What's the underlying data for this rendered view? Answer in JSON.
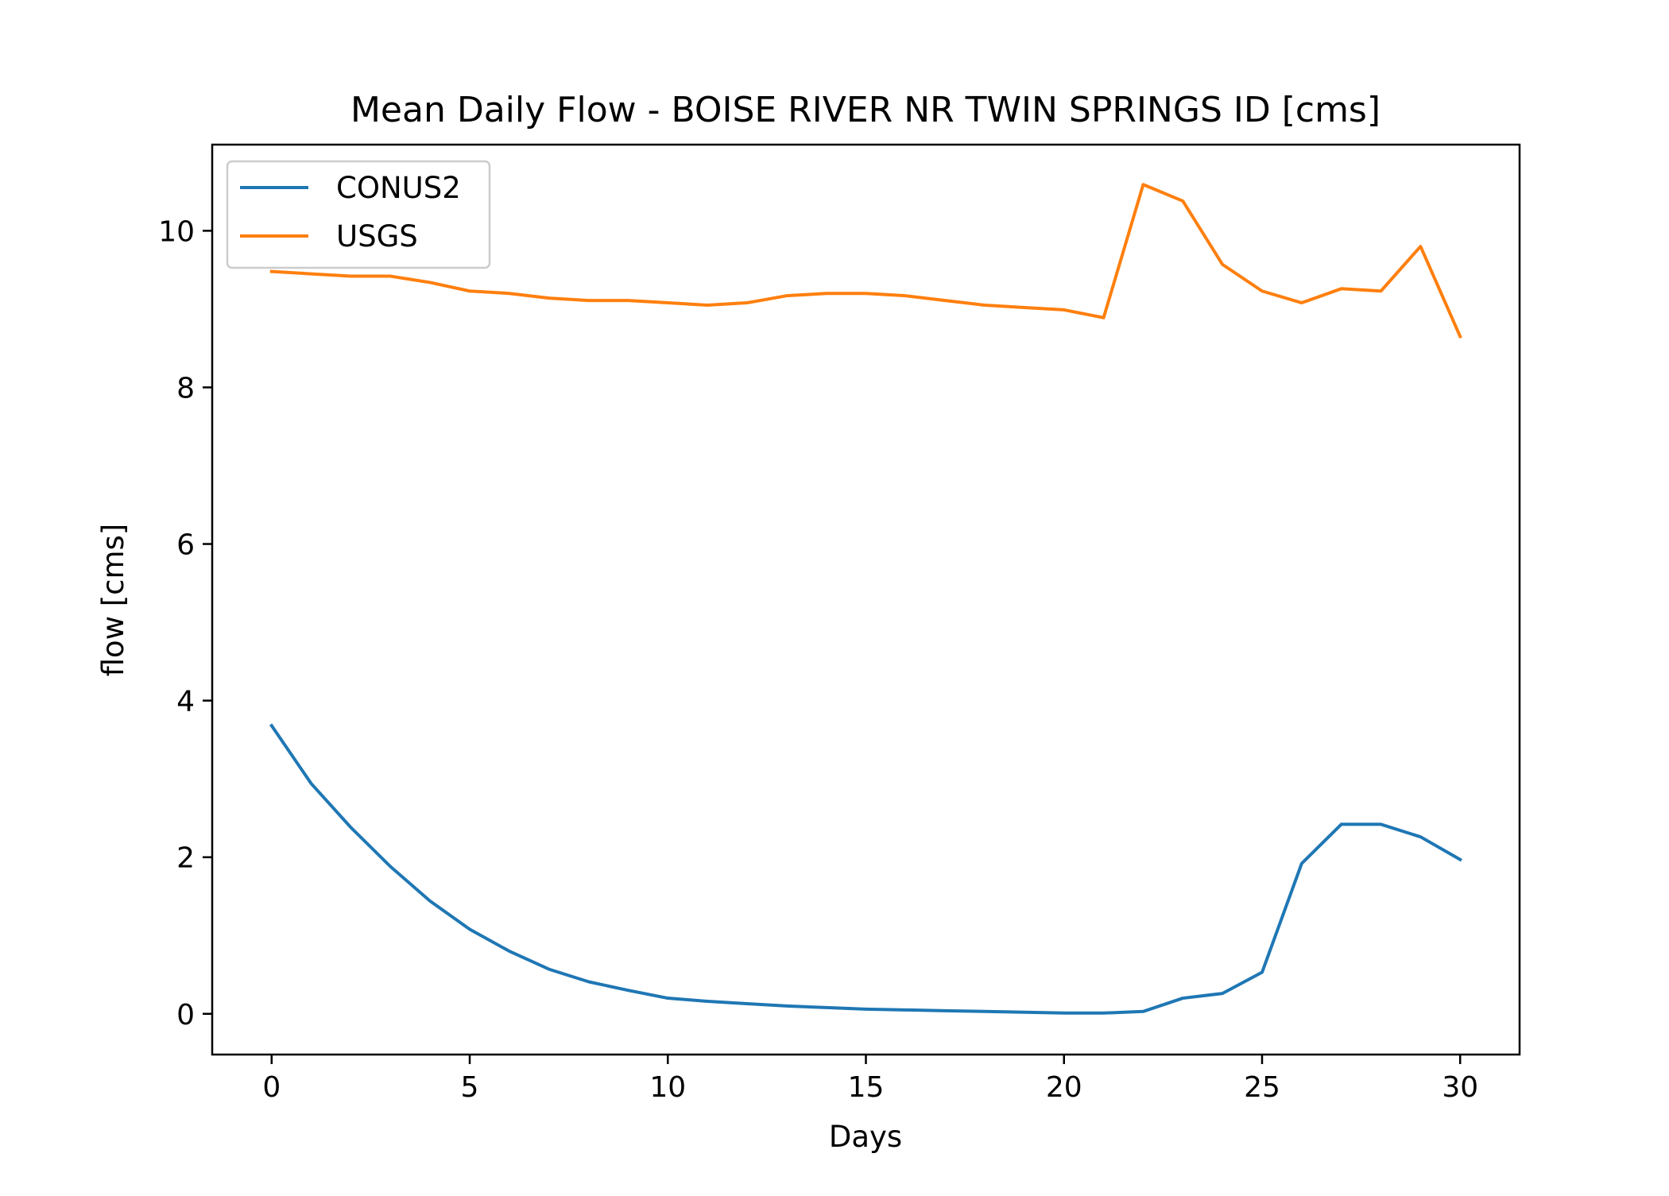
{
  "chart_data": {
    "type": "line",
    "title": "Mean Daily Flow - BOISE RIVER NR TWIN SPRINGS ID [cms]",
    "xlabel": "Days",
    "ylabel": "flow [cms]",
    "xlim": [
      -1.5,
      31.5
    ],
    "ylim": [
      -0.52,
      11.1
    ],
    "xticks": [
      0,
      5,
      10,
      15,
      20,
      25,
      30
    ],
    "xtick_labels": [
      "0",
      "5",
      "10",
      "15",
      "20",
      "25",
      "30"
    ],
    "yticks": [
      0,
      2,
      4,
      6,
      8,
      10
    ],
    "ytick_labels": [
      "0",
      "2",
      "4",
      "6",
      "8",
      "10"
    ],
    "grid": false,
    "legend_position": "top-left",
    "x": [
      0,
      1,
      2,
      3,
      4,
      5,
      6,
      7,
      8,
      9,
      10,
      11,
      12,
      13,
      14,
      15,
      16,
      17,
      18,
      19,
      20,
      21,
      22,
      23,
      24,
      25,
      26,
      27,
      28,
      29,
      30
    ],
    "series": [
      {
        "name": "CONUS2",
        "color": "#1f77b4",
        "values": [
          3.68,
          2.94,
          2.38,
          1.88,
          1.44,
          1.08,
          0.8,
          0.57,
          0.41,
          0.3,
          0.2,
          0.16,
          0.13,
          0.1,
          0.08,
          0.06,
          0.05,
          0.04,
          0.03,
          0.02,
          0.01,
          0.01,
          0.03,
          0.2,
          0.26,
          0.53,
          1.92,
          2.42,
          2.42,
          2.26,
          1.97
        ]
      },
      {
        "name": "USGS",
        "color": "#ff7f0e",
        "values": [
          9.48,
          9.45,
          9.42,
          9.42,
          9.34,
          9.23,
          9.2,
          9.14,
          9.11,
          9.11,
          9.08,
          9.05,
          9.08,
          9.17,
          9.2,
          9.2,
          9.17,
          9.11,
          9.05,
          9.02,
          8.99,
          8.89,
          10.59,
          10.38,
          9.57,
          9.23,
          9.08,
          9.26,
          9.23,
          9.8,
          8.65
        ]
      }
    ]
  }
}
